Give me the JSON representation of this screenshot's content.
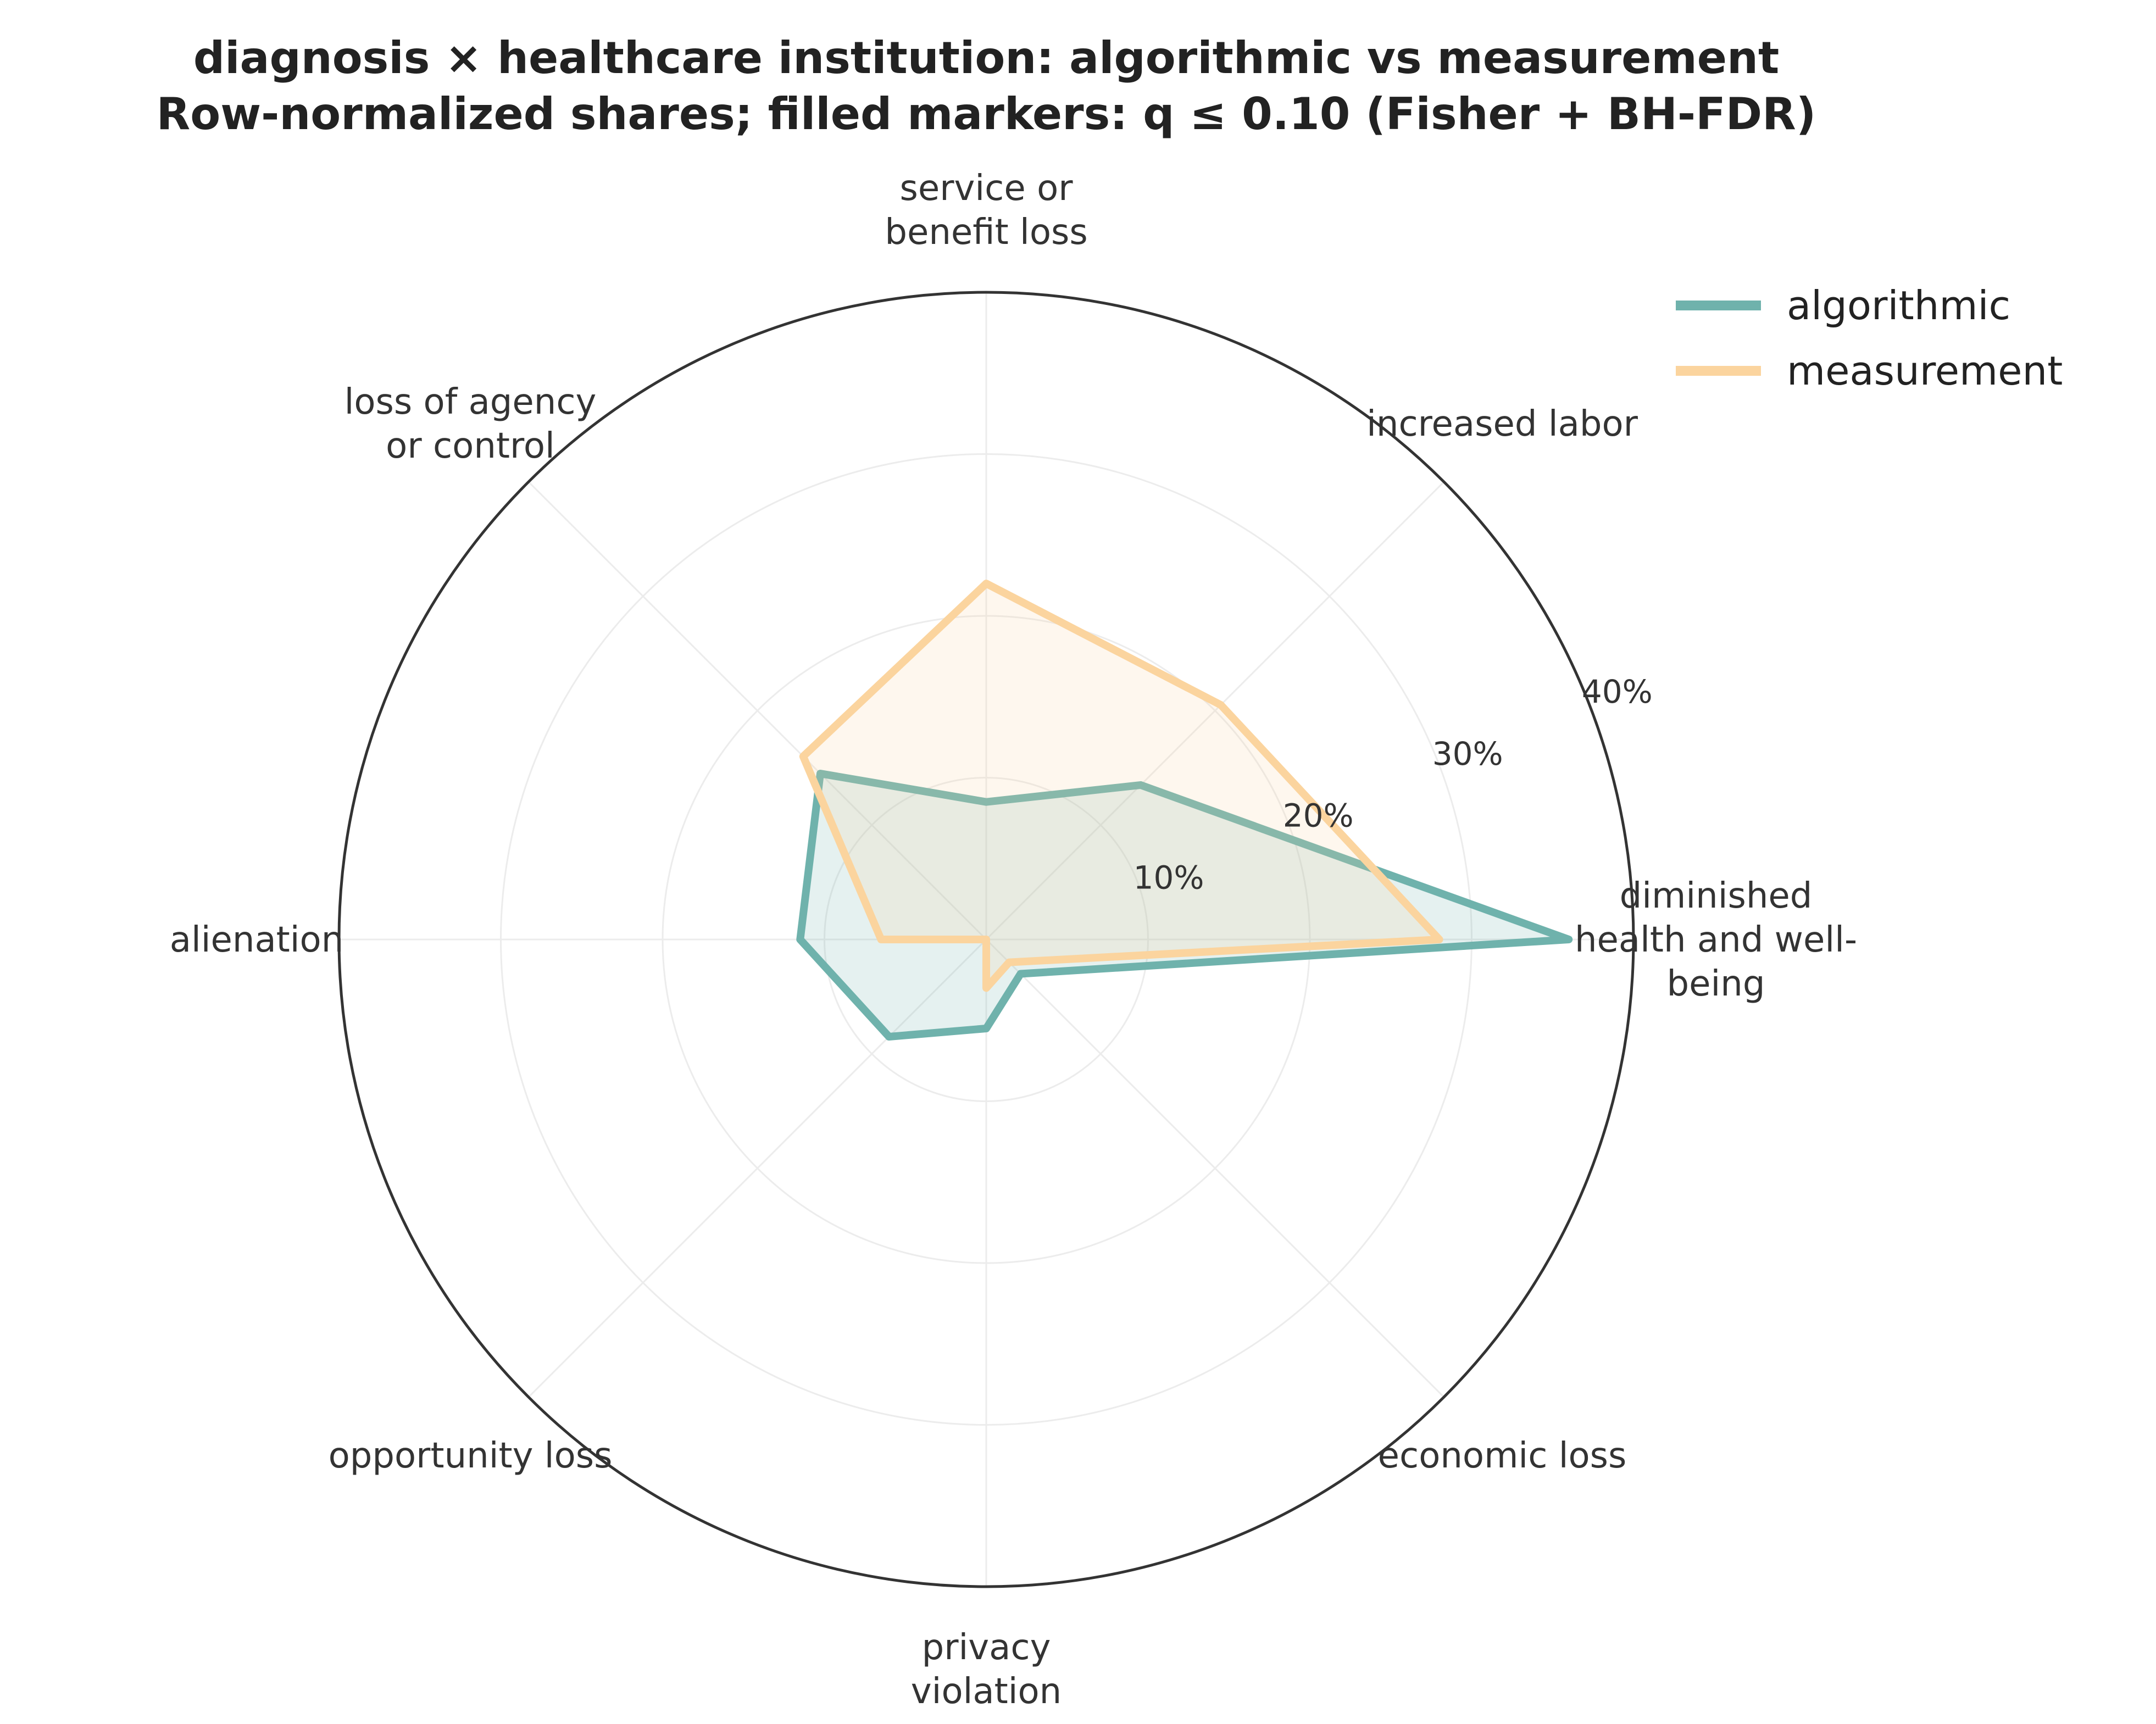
{
  "title_lines": [
    "diagnosis × healthcare institution: algorithmic vs measurement",
    "Row-normalized shares; filled markers: q ≤ 0.10 (Fisher + BH-FDR)"
  ],
  "chart_data": {
    "type": "radar",
    "categories": [
      [
        "diminished",
        "health and well-",
        "being"
      ],
      [
        "increased labor"
      ],
      [
        "service or",
        "benefit loss"
      ],
      [
        "loss of agency",
        "or control"
      ],
      [
        "alienation"
      ],
      [
        "opportunity loss"
      ],
      [
        "privacy",
        "violation"
      ],
      [
        "economic loss"
      ]
    ],
    "series": [
      {
        "name": "algorithmic",
        "color": "#6fb2ac",
        "fill": "#6fb2ac",
        "values": [
          36.0,
          13.5,
          8.5,
          14.5,
          11.5,
          8.5,
          5.5,
          3.0
        ]
      },
      {
        "name": "measurement",
        "color": "#fbd49e",
        "fill": "#fbd49e",
        "values": [
          28.0,
          20.5,
          22.0,
          16.0,
          6.5,
          0,
          3.0,
          2.0
        ]
      }
    ],
    "r_ticks": [
      10,
      20,
      30,
      40
    ],
    "r_tick_labels": [
      "10%",
      "20%",
      "30%",
      "40%"
    ],
    "rlim": [
      0,
      40
    ],
    "grid": true,
    "legend_position": "top-right"
  }
}
